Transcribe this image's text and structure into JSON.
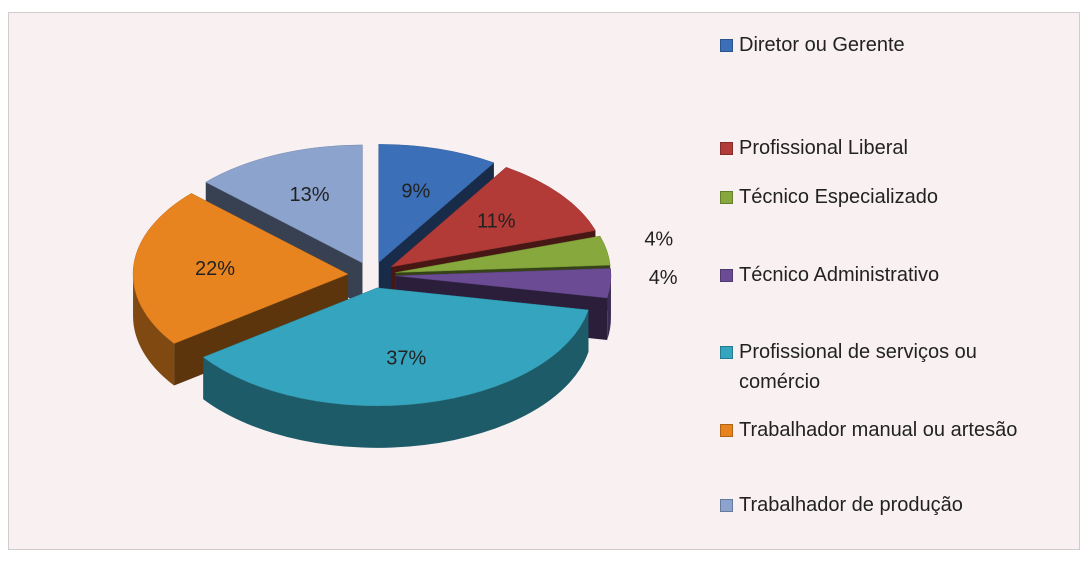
{
  "chart_data": {
    "type": "pie",
    "categories": [
      "Diretor ou Gerente",
      "Profissional Liberal",
      "Técnico Especializado",
      "Técnico Administrativo",
      "Profissional de serviços ou comércio",
      "Trabalhador manual ou artesão",
      "Trabalhador de produção"
    ],
    "values": [
      9,
      11,
      4,
      4,
      37,
      22,
      13
    ],
    "value_labels": [
      "9%",
      "11%",
      "4%",
      "4%",
      "37%",
      "22%",
      "13%"
    ],
    "colors": [
      "#3b6fb8",
      "#b23a37",
      "#86a83d",
      "#6b4c94",
      "#35a5bf",
      "#e8841f",
      "#8ba3cd"
    ],
    "legend": "right"
  }
}
